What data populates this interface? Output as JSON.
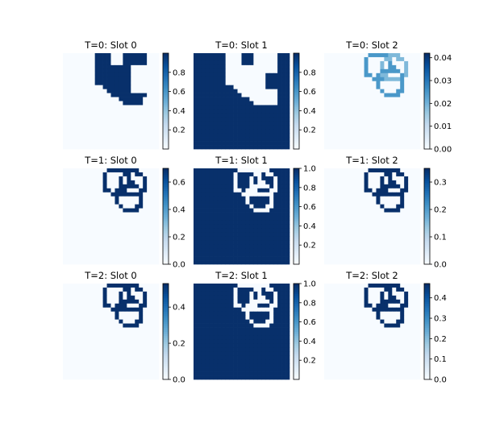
{
  "chart_data": {
    "type": "heatmap",
    "colormap": "Blues",
    "grid_cells": 24,
    "panels": [
      {
        "title": "T=0: Slot 0",
        "colorbar": {
          "ticks": [
            "0.2",
            "0.4",
            "0.6",
            "0.8"
          ],
          "tick_values": [
            0.2,
            0.4,
            0.6,
            0.8
          ],
          "min": 0.0,
          "max": 1.0
        },
        "content": "blob_left"
      },
      {
        "title": "T=0: Slot 1",
        "colorbar": {
          "ticks": [
            "0.2",
            "0.4",
            "0.6",
            "0.8"
          ],
          "tick_values": [
            0.2,
            0.4,
            0.6,
            0.8
          ],
          "min": 0.0,
          "max": 1.0
        },
        "content": "full_inverse"
      },
      {
        "title": "T=0: Slot 2",
        "colorbar": {
          "ticks": [
            "0.00",
            "0.01",
            "0.02",
            "0.03",
            "0.04"
          ],
          "tick_values": [
            0.0,
            0.01,
            0.02,
            0.03,
            0.04
          ],
          "min": 0.0,
          "max": 0.042
        },
        "content": "circles_faint"
      },
      {
        "title": "T=1: Slot 0",
        "colorbar": {
          "ticks": [
            "0.0",
            "0.2",
            "0.4",
            "0.6"
          ],
          "tick_values": [
            0.0,
            0.2,
            0.4,
            0.6
          ],
          "min": 0.0,
          "max": 0.7
        },
        "content": "circles"
      },
      {
        "title": "T=1: Slot 1",
        "colorbar": {
          "ticks": [
            "0.2",
            "0.4",
            "0.6",
            "0.8",
            "1.0"
          ],
          "tick_values": [
            0.2,
            0.4,
            0.6,
            0.8,
            1.0
          ],
          "min": 0.0,
          "max": 1.0
        },
        "content": "full_circles_white"
      },
      {
        "title": "T=1: Slot 2",
        "colorbar": {
          "ticks": [
            "0.0",
            "0.1",
            "0.2",
            "0.3"
          ],
          "tick_values": [
            0.0,
            0.1,
            0.2,
            0.3
          ],
          "min": 0.0,
          "max": 0.35
        },
        "content": "circles"
      },
      {
        "title": "T=2: Slot 0",
        "colorbar": {
          "ticks": [
            "0.0",
            "0.2",
            "0.4"
          ],
          "tick_values": [
            0.0,
            0.2,
            0.4
          ],
          "min": 0.0,
          "max": 0.53
        },
        "content": "circles"
      },
      {
        "title": "T=2: Slot 1",
        "colorbar": {
          "ticks": [
            "0.2",
            "0.4",
            "0.6",
            "0.8",
            "1.0"
          ],
          "tick_values": [
            0.2,
            0.4,
            0.6,
            0.8,
            1.0
          ],
          "min": 0.0,
          "max": 1.0
        },
        "content": "full_circles_white"
      },
      {
        "title": "T=2: Slot 2",
        "colorbar": {
          "ticks": [
            "0.0",
            "0.1",
            "0.2",
            "0.3",
            "0.4"
          ],
          "tick_values": [
            0.0,
            0.1,
            0.2,
            0.3,
            0.4
          ],
          "min": 0.0,
          "max": 0.47
        },
        "content": "circles"
      }
    ]
  }
}
